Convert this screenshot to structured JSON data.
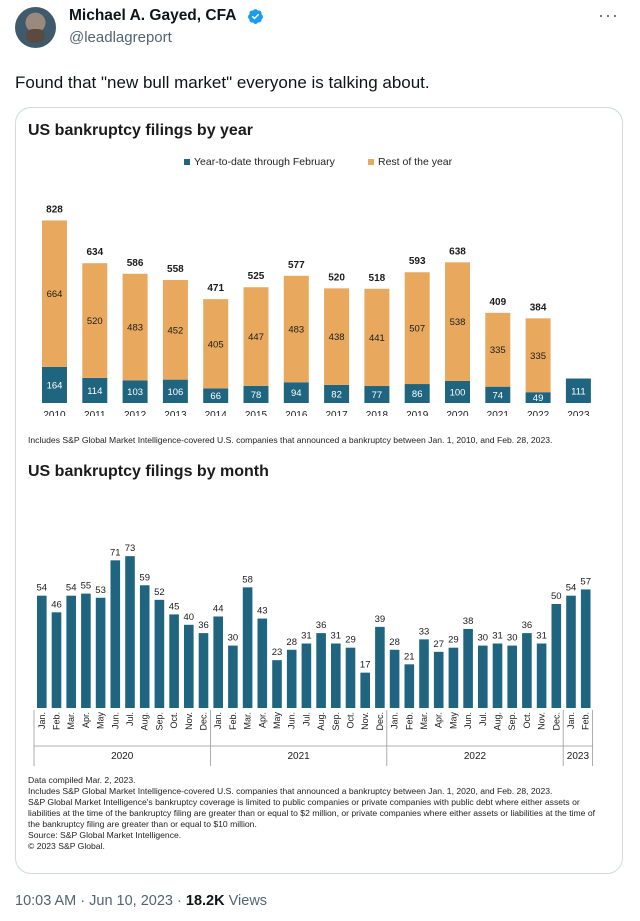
{
  "author": {
    "name": "Michael A. Gayed, CFA",
    "handle": "@leadlagreport"
  },
  "more_label": "···",
  "tweet_text": "Found that \"new bull market\" everyone is talking about.",
  "colors": {
    "ytd": "#1f6580",
    "rest": "#e8a95e",
    "monthly": "#1f6580"
  },
  "chart_data": [
    {
      "type": "bar",
      "title": "US bankruptcy filings by year",
      "categories": [
        "2010",
        "2011",
        "2012",
        "2013",
        "2014",
        "2015",
        "2016",
        "2017",
        "2018",
        "2019",
        "2020",
        "2021",
        "2022",
        "2023"
      ],
      "series": [
        {
          "name": "Year-to-date through February",
          "values": [
            164,
            114,
            103,
            106,
            66,
            78,
            94,
            82,
            77,
            86,
            100,
            74,
            49,
            111
          ]
        },
        {
          "name": "Rest of the year",
          "values": [
            664,
            520,
            483,
            452,
            405,
            447,
            483,
            438,
            441,
            507,
            538,
            335,
            335,
            null
          ]
        }
      ],
      "totals": [
        828,
        634,
        586,
        558,
        471,
        525,
        577,
        520,
        518,
        593,
        638,
        409,
        384,
        null
      ],
      "stacked": true,
      "ylim": [
        0,
        850
      ],
      "note": "Includes S&P Global Market Intelligence-covered U.S. companies that announced a bankruptcy between Jan. 1, 2010, and Feb. 28, 2023."
    },
    {
      "type": "bar",
      "title": "US bankruptcy filings by month",
      "categories": [
        "Jan.",
        "Feb.",
        "Mar.",
        "Apr.",
        "May",
        "Jun.",
        "Jul.",
        "Aug.",
        "Sep.",
        "Oct.",
        "Nov.",
        "Dec.",
        "Jan.",
        "Feb.",
        "Mar.",
        "Apr.",
        "May",
        "Jun.",
        "Jul.",
        "Aug.",
        "Sep.",
        "Oct.",
        "Nov.",
        "Dec.",
        "Jan.",
        "Feb.",
        "Mar.",
        "Apr.",
        "May",
        "Jun.",
        "Jul.",
        "Aug.",
        "Sep.",
        "Oct.",
        "Nov.",
        "Dec.",
        "Jan.",
        "Feb."
      ],
      "values": [
        54,
        46,
        54,
        55,
        53,
        71,
        73,
        59,
        52,
        45,
        40,
        36,
        44,
        30,
        58,
        43,
        23,
        28,
        31,
        36,
        31,
        29,
        17,
        39,
        28,
        21,
        33,
        27,
        29,
        38,
        30,
        31,
        30,
        36,
        31,
        50,
        54,
        57
      ],
      "groups": [
        {
          "label": "2020",
          "count": 12
        },
        {
          "label": "2021",
          "count": 12
        },
        {
          "label": "2022",
          "count": 12
        },
        {
          "label": "2023",
          "count": 2
        }
      ],
      "ylim": [
        0,
        75
      ],
      "notes": [
        "Data compiled Mar. 2, 2023.",
        "Includes S&P Global Market Intelligence-covered U.S. companies that announced a bankruptcy between Jan. 1, 2020, and Feb. 28, 2023.",
        "S&P Global Market Intelligence's bankruptcy coverage is limited to public companies or private companies with public debt where either assets or liabilities at the time of the bankruptcy filing are greater than or equal to $2 million, or private companies where either assets or liabilities at the time of the bankruptcy filing are greater than or equal to $10 million.",
        "Source: S&P Global Market Intelligence.",
        "© 2023 S&P Global."
      ]
    }
  ],
  "footer": {
    "timestamp": "10:03 AM · Jun 10, 2023 · ",
    "views_count": "18.2K",
    "views_label": " Views"
  }
}
